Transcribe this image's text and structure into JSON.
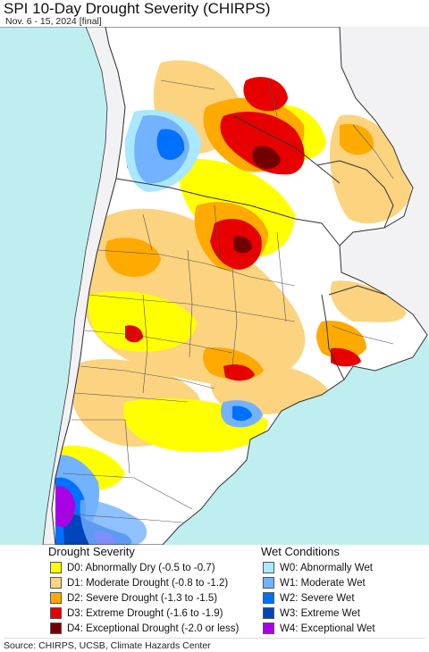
{
  "header": {
    "title": "SPI 10-Day Drought Severity (CHIRPS)",
    "subtitle": "Nov. 6 - 15, 2024 [final]"
  },
  "legend": {
    "drought": {
      "title": "Drought Severity",
      "items": [
        {
          "code": "D0",
          "label": "D0: Abnormally Dry (-0.5 to -0.7)",
          "color": "#ffff00"
        },
        {
          "code": "D1",
          "label": "D1: Moderate Drought (-0.8 to -1.2)",
          "color": "#fcd37f"
        },
        {
          "code": "D2",
          "label": "D2: Severe Drought (-1.3 to -1.5)",
          "color": "#ffaa00"
        },
        {
          "code": "D3",
          "label": "D3: Extreme Drought (-1.6 to -1.9)",
          "color": "#e60000"
        },
        {
          "code": "D4",
          "label": "D4: Exceptional Drought (-2.0 or less)",
          "color": "#730000"
        }
      ]
    },
    "wet": {
      "title": "Wet Conditions",
      "items": [
        {
          "code": "W0",
          "label": "W0: Abnormally Wet",
          "color": "#aae8ff"
        },
        {
          "code": "W1",
          "label": "W1: Moderate Wet",
          "color": "#73b2ff"
        },
        {
          "code": "W2",
          "label": "W2: Severe Wet",
          "color": "#0070ff"
        },
        {
          "code": "W3",
          "label": "W3: Extreme Wet",
          "color": "#0044bb"
        },
        {
          "code": "W4",
          "label": "W4: Exceptional Wet",
          "color": "#a900e6"
        }
      ]
    }
  },
  "footer": {
    "source": "Source: CHIRPS, UCSB, Climate Hazards Center"
  },
  "map": {
    "ocean_color": "#bfeef0",
    "outside_land_color": "#f2f2f4",
    "no_drought_color": "#ffffff",
    "border_color": "#333333"
  }
}
